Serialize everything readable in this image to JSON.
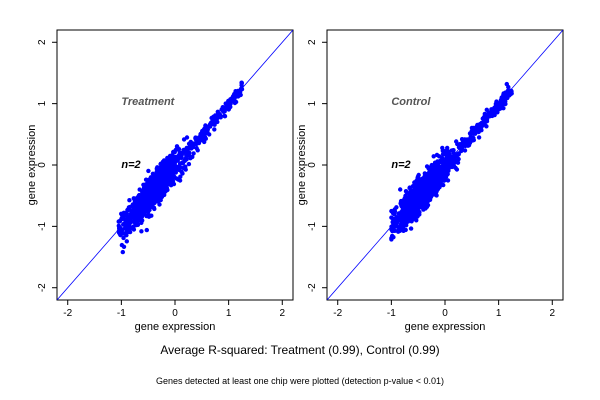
{
  "figure": {
    "summary": "Average R-squared: Treatment (0.99), Control (0.99)",
    "footnote": "Genes detected at least one chip were plotted (detection p-value < 0.01)"
  },
  "colors": {
    "points": "#0000ff",
    "identity_line": "#0000ff",
    "frame": "#000000",
    "group_label": "#555555"
  },
  "chart_data": [
    {
      "type": "scatter",
      "title": "",
      "group_label": "Treatment",
      "n_label": "n=2",
      "xlabel": "gene expression",
      "ylabel": "gene expression",
      "xlim": [
        -2.2,
        2.2
      ],
      "ylim": [
        -2.2,
        2.2
      ],
      "xticks": [
        -2,
        -1,
        0,
        1,
        2
      ],
      "yticks": [
        -2,
        -1,
        0,
        1,
        2
      ],
      "grid": false,
      "reference_line": {
        "slope": 1,
        "intercept": 0
      },
      "point_cloud": {
        "x_range": [
          -1.05,
          1.25
        ],
        "center": [
          -0.4,
          -0.45
        ],
        "spread": 0.08
      }
    },
    {
      "type": "scatter",
      "title": "",
      "group_label": "Control",
      "n_label": "n=2",
      "xlabel": "gene expression",
      "ylabel": "gene expression",
      "xlim": [
        -2.2,
        2.2
      ],
      "ylim": [
        -2.2,
        2.2
      ],
      "xticks": [
        -2,
        -1,
        0,
        1,
        2
      ],
      "yticks": [
        -2,
        -1,
        0,
        1,
        2
      ],
      "grid": false,
      "reference_line": {
        "slope": 1,
        "intercept": 0
      },
      "point_cloud": {
        "x_range": [
          -1.0,
          1.25
        ],
        "center": [
          -0.4,
          -0.45
        ],
        "spread": 0.08
      }
    }
  ]
}
